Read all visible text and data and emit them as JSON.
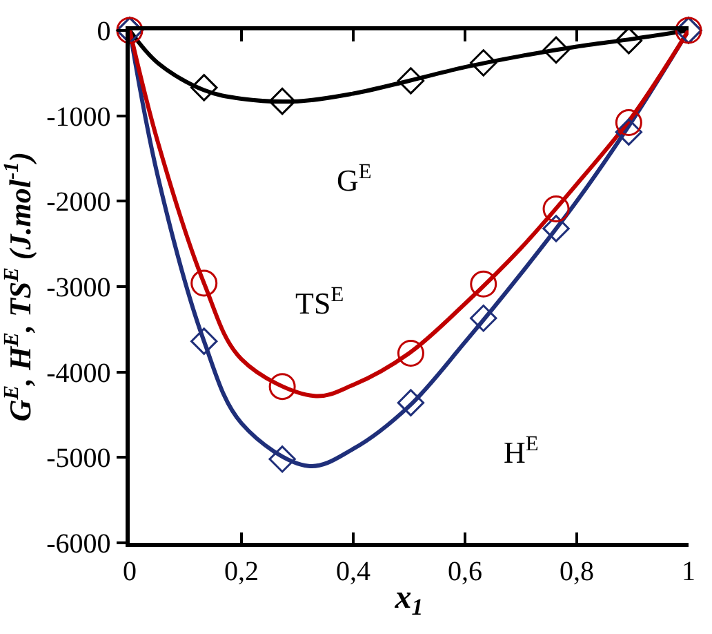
{
  "chart_data": {
    "type": "line",
    "xlabel": "x$_{1}$",
    "ylabel": "G$^{E}$, H$^{E}$, TS$^{E}$ (J.mol$^{-1}$)",
    "xlim": [
      0,
      1
    ],
    "ylim": [
      -6000,
      0
    ],
    "xticks": [
      0,
      {
        "value": 0.2,
        "label": "0,2"
      },
      {
        "value": 0.4,
        "label": "0,4"
      },
      {
        "value": 0.6,
        "label": "0,6"
      },
      {
        "value": 0.8,
        "label": "0,8"
      },
      1
    ],
    "yticks": [
      -6000,
      -5000,
      -4000,
      -3000,
      -2000,
      -1000,
      0
    ],
    "legend": false,
    "series": [
      {
        "name": "G$^{E}$",
        "color": "#000000",
        "marker": "none",
        "x": [
          0,
          0.05,
          0.133,
          0.2,
          0.3,
          0.4,
          0.5,
          0.6,
          0.7,
          0.8,
          0.9,
          1
        ],
        "values": [
          0,
          -380,
          -700,
          -800,
          -830,
          -740,
          -590,
          -430,
          -300,
          -190,
          -100,
          0
        ]
      },
      {
        "name": "H$^{E}$",
        "color": "#1f2f7a",
        "marker": "none",
        "x": [
          0,
          0.05,
          0.133,
          0.2,
          0.32,
          0.4,
          0.5,
          0.6,
          0.7,
          0.8,
          0.9,
          1
        ],
        "values": [
          0,
          -1700,
          -3640,
          -4600,
          -5100,
          -4900,
          -4400,
          -3650,
          -2850,
          -2000,
          -1050,
          0
        ]
      },
      {
        "name": "TS$^{E}$",
        "color": "#c00000",
        "marker": "none",
        "x": [
          0,
          0.05,
          0.133,
          0.2,
          0.33,
          0.4,
          0.5,
          0.6,
          0.7,
          0.8,
          0.9,
          1
        ],
        "values": [
          0,
          -1300,
          -2960,
          -3850,
          -4280,
          -4150,
          -3780,
          -3200,
          -2550,
          -1800,
          -1000,
          0
        ]
      },
      {
        "type": "scatter",
        "color": "#000000",
        "marker": "diamond",
        "x": [
          0,
          0.133,
          0.273,
          0.503,
          0.633,
          0.763,
          0.893,
          1
        ],
        "values": [
          0,
          -670,
          -830,
          -590,
          -380,
          -230,
          -120,
          0
        ]
      },
      {
        "type": "scatter",
        "color": "#1f2f7a",
        "marker": "diamond",
        "x": [
          0,
          0.133,
          0.273,
          0.503,
          0.633,
          0.763,
          0.893,
          1
        ],
        "values": [
          0,
          -3640,
          -5020,
          -4360,
          -3370,
          -2320,
          -1190,
          0
        ]
      },
      {
        "type": "scatter",
        "color": "#c00000",
        "marker": "circle",
        "x": [
          0,
          0.133,
          0.273,
          0.503,
          0.633,
          0.763,
          0.893,
          1
        ],
        "values": [
          0,
          -2960,
          -4170,
          -3780,
          -2970,
          -2090,
          -1080,
          0
        ]
      }
    ]
  }
}
